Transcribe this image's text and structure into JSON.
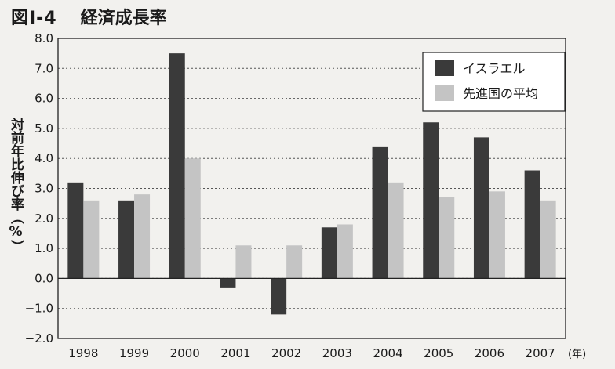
{
  "figure": {
    "label": "図Ⅰ-4",
    "title": "経済成長率"
  },
  "chart_data": {
    "type": "bar",
    "title": "経済成長率",
    "ylabel": "対前年比伸び率（%）",
    "xunit": "(年)",
    "categories": [
      "1998",
      "1999",
      "2000",
      "2001",
      "2002",
      "2003",
      "2004",
      "2005",
      "2006",
      "2007"
    ],
    "series": [
      {
        "name": "イスラエル",
        "color": "#3a3a3a",
        "values": [
          3.2,
          2.6,
          7.5,
          -0.3,
          -1.2,
          1.7,
          4.4,
          5.2,
          4.7,
          3.6
        ]
      },
      {
        "name": "先進国の平均",
        "color": "#c4c4c4",
        "values": [
          2.6,
          2.8,
          4.0,
          1.1,
          1.1,
          1.8,
          3.2,
          2.7,
          2.9,
          2.6
        ]
      }
    ],
    "ylim": [
      -2.0,
      8.0
    ],
    "yticks": [
      "8.0",
      "7.0",
      "6.0",
      "5.0",
      "4.0",
      "3.0",
      "2.0",
      "1.0",
      "0.0",
      "−1.0",
      "−2.0"
    ],
    "grid": true,
    "legend": "top-right"
  }
}
